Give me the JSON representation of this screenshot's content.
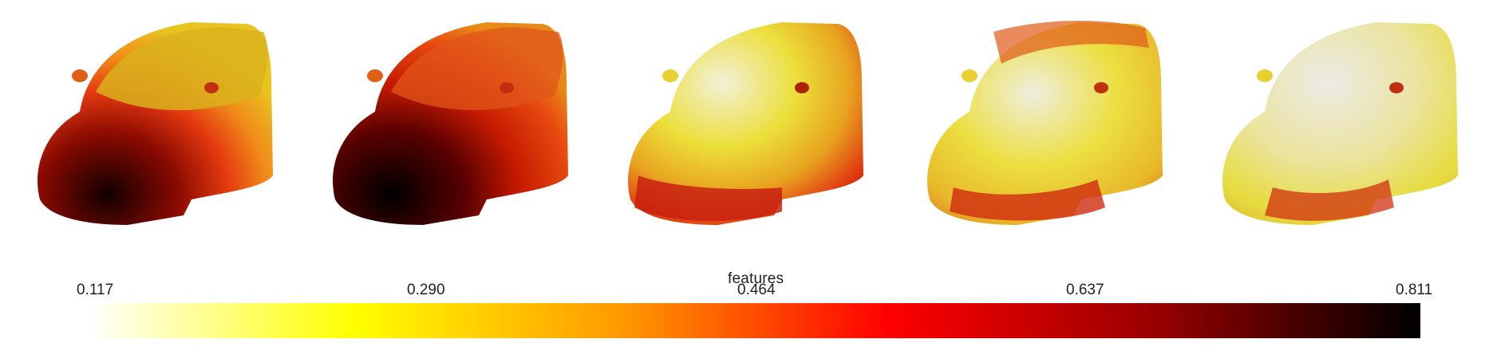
{
  "scene": {
    "car_count": 5,
    "views": [
      {
        "label": "",
        "tone": "dark-front"
      },
      {
        "label": "",
        "tone": "darker-front"
      },
      {
        "label": "",
        "tone": "light-top"
      },
      {
        "label": "",
        "tone": "light-top-red-lower"
      },
      {
        "label": "",
        "tone": "lightest"
      }
    ]
  },
  "colorbar": {
    "title": "features",
    "min_label": "0.117",
    "tick_2": "0.290",
    "tick_3": "0.464",
    "tick_4": "0.637",
    "max_label": "0.811",
    "colormap": [
      "#ffffff",
      "#ffff00",
      "#ff9900",
      "#ff0000",
      "#990000",
      "#000000"
    ]
  }
}
